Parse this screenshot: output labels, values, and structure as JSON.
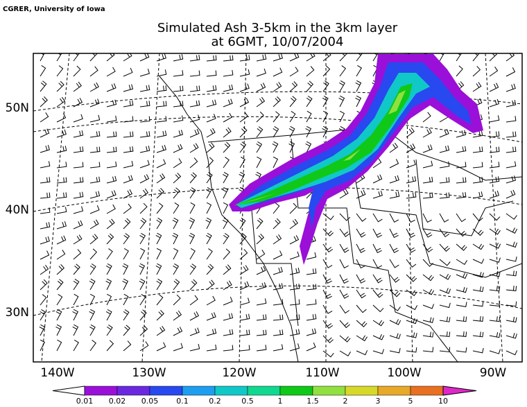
{
  "header": {
    "credit": "CGRER, University of Iowa",
    "title": "Simulated Ash 3-5km in the 3km layer",
    "subtitle": "at 6GMT, 10/07/2004"
  },
  "map": {
    "lat_labels": [
      "50N",
      "40N",
      "30N"
    ],
    "lon_labels": [
      "140W",
      "130W",
      "120W",
      "110W",
      "100W",
      "90W"
    ]
  },
  "legend": {
    "levels": [
      "0.01",
      "0.02",
      "0.05",
      "0.1",
      "0.2",
      "0.5",
      "1",
      "1.5",
      "2",
      "3",
      "5",
      "10"
    ],
    "under_color": "#ffffff",
    "over_color": "#e028c8",
    "colors": [
      "#9a10d8",
      "#6a28e0",
      "#2848f0",
      "#1e9ef0",
      "#10c8c8",
      "#10d890",
      "#10c818",
      "#90e040",
      "#d8d828",
      "#e8a828",
      "#e87020"
    ]
  }
}
